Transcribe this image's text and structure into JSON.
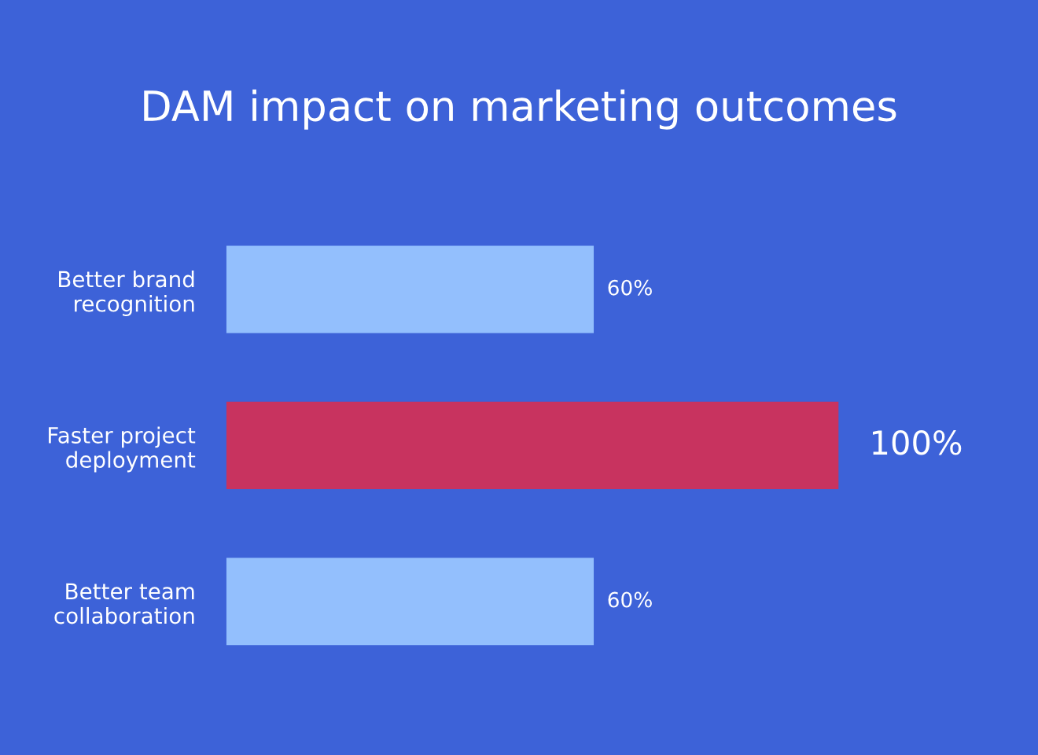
{
  "chart_data": {
    "type": "bar",
    "orientation": "horizontal",
    "title": "DAM impact on marketing outcomes",
    "categories": [
      "Better brand recognition",
      "Faster project deployment",
      "Better team collaboration"
    ],
    "values": [
      60,
      100,
      60
    ],
    "colors": [
      "#93bffd",
      "#c8335f",
      "#93bffd"
    ],
    "value_labels": [
      "60%",
      "100%",
      "60%"
    ],
    "grid": false,
    "legend": false
  }
}
